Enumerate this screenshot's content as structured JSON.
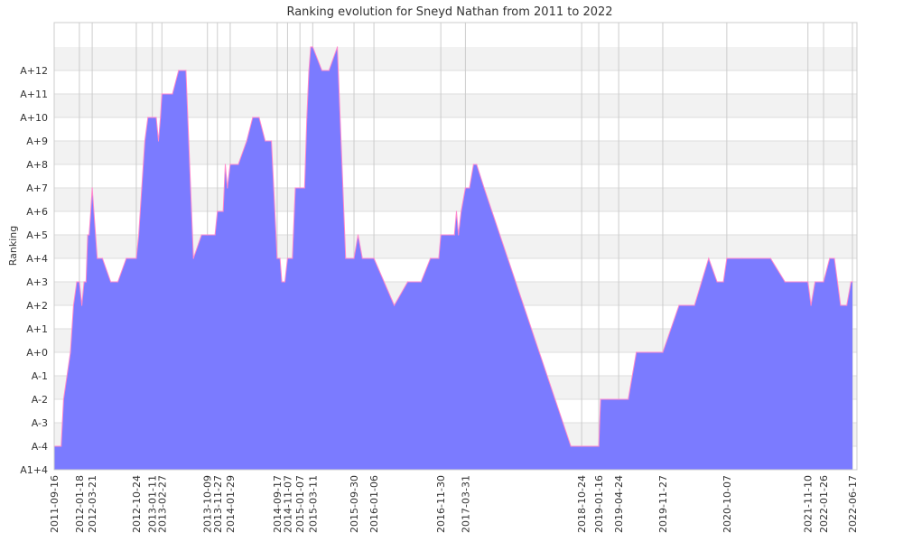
{
  "chart_data": {
    "type": "area",
    "title": "Ranking evolution for Sneyd Nathan from 2011 to 2022",
    "xlabel": "",
    "ylabel": "Ranking",
    "y_ticks": [
      "A1+4",
      "A-4",
      "A-3",
      "A-2",
      "A-1",
      "A+0",
      "A+1",
      "A+2",
      "A+3",
      "A+4",
      "A+5",
      "A+6",
      "A+7",
      "A+8",
      "A+9",
      "A+10",
      "A+11",
      "A+12"
    ],
    "x_ticks": [
      "2011-09-16",
      "2012-01-18",
      "2012-03-21",
      "2012-10-24",
      "2013-01-11",
      "2013-02-27",
      "2013-10-09",
      "2013-11-27",
      "2014-01-29",
      "2014-09-17",
      "2014-11-07",
      "2015-01-07",
      "2015-03-11",
      "2015-09-30",
      "2016-01-06",
      "2016-11-30",
      "2017-03-31",
      "2018-10-24",
      "2019-01-16",
      "2019-04-24",
      "2019-11-27",
      "2020-10-07",
      "2021-11-10",
      "2022-01-26",
      "2022-06-17"
    ],
    "grid": true,
    "colors": {
      "fill": "#7b7bff",
      "line": "#ff88cc",
      "grid": "#cccccc",
      "band": "#f2f2f2"
    },
    "series": [
      {
        "values": [
          [
            "2011-09-16",
            "A-4"
          ],
          [
            "2011-10-20",
            "A-4"
          ],
          [
            "2011-11-01",
            "A-2"
          ],
          [
            "2011-12-05",
            "A+0"
          ],
          [
            "2011-12-20",
            "A+2"
          ],
          [
            "2012-01-05",
            "A+3"
          ],
          [
            "2012-01-18",
            "A+3"
          ],
          [
            "2012-01-30",
            "A+2"
          ],
          [
            "2012-02-10",
            "A+3"
          ],
          [
            "2012-02-20",
            "A+3"
          ],
          [
            "2012-02-28",
            "A+5"
          ],
          [
            "2012-03-06",
            "A+5"
          ],
          [
            "2012-03-14",
            "A+6"
          ],
          [
            "2012-03-21",
            "A+7"
          ],
          [
            "2012-04-15",
            "A+4"
          ],
          [
            "2012-05-10",
            "A+4"
          ],
          [
            "2012-06-20",
            "A+3"
          ],
          [
            "2012-07-25",
            "A+3"
          ],
          [
            "2012-09-05",
            "A+4"
          ],
          [
            "2012-10-24",
            "A+4"
          ],
          [
            "2012-11-05",
            "A+5"
          ],
          [
            "2012-11-20",
            "A+7"
          ],
          [
            "2012-12-05",
            "A+9"
          ],
          [
            "2012-12-20",
            "A+10"
          ],
          [
            "2013-01-11",
            "A+10"
          ],
          [
            "2013-01-30",
            "A+10"
          ],
          [
            "2013-02-10",
            "A+9"
          ],
          [
            "2013-02-20",
            "A+10"
          ],
          [
            "2013-02-27",
            "A+11"
          ],
          [
            "2013-04-20",
            "A+11"
          ],
          [
            "2013-05-20",
            "A+12"
          ],
          [
            "2013-06-25",
            "A+12"
          ],
          [
            "2013-08-01",
            "A+4"
          ],
          [
            "2013-09-10",
            "A+5"
          ],
          [
            "2013-10-09",
            "A+5"
          ],
          [
            "2013-11-15",
            "A+5"
          ],
          [
            "2013-11-27",
            "A+6"
          ],
          [
            "2013-12-10",
            "A+6"
          ],
          [
            "2013-12-25",
            "A+6"
          ],
          [
            "2014-01-05",
            "A+8"
          ],
          [
            "2014-01-15",
            "A+7"
          ],
          [
            "2014-01-29",
            "A+8"
          ],
          [
            "2014-03-10",
            "A+8"
          ],
          [
            "2014-04-20",
            "A+9"
          ],
          [
            "2014-05-20",
            "A+10"
          ],
          [
            "2014-06-20",
            "A+10"
          ],
          [
            "2014-07-20",
            "A+9"
          ],
          [
            "2014-08-20",
            "A+9"
          ],
          [
            "2014-09-17",
            "A+4"
          ],
          [
            "2014-10-01",
            "A+4"
          ],
          [
            "2014-10-10",
            "A+3"
          ],
          [
            "2014-10-20",
            "A+3"
          ],
          [
            "2014-10-25",
            "A+3"
          ],
          [
            "2014-11-07",
            "A+4"
          ],
          [
            "2014-12-01",
            "A+4"
          ],
          [
            "2014-12-15",
            "A+7"
          ],
          [
            "2015-01-07",
            "A+7"
          ],
          [
            "2015-01-30",
            "A+7"
          ],
          [
            "2015-02-10",
            "A+10"
          ],
          [
            "2015-02-20",
            "A+12"
          ],
          [
            "2015-03-01",
            "A+13"
          ],
          [
            "2015-03-11",
            "A+13"
          ],
          [
            "2015-04-25",
            "A+12"
          ],
          [
            "2015-05-30",
            "A+12"
          ],
          [
            "2015-07-10",
            "A+13"
          ],
          [
            "2015-08-20",
            "A+4"
          ],
          [
            "2015-09-30",
            "A+4"
          ],
          [
            "2015-10-20",
            "A+5"
          ],
          [
            "2015-11-10",
            "A+4"
          ],
          [
            "2015-12-05",
            "A+4"
          ],
          [
            "2016-01-06",
            "A+4"
          ],
          [
            "2016-04-15",
            "A+2"
          ],
          [
            "2016-06-20",
            "A+3"
          ],
          [
            "2016-08-25",
            "A+3"
          ],
          [
            "2016-10-10",
            "A+4"
          ],
          [
            "2016-11-20",
            "A+4"
          ],
          [
            "2016-11-30",
            "A+5"
          ],
          [
            "2017-01-10",
            "A+5"
          ],
          [
            "2017-02-05",
            "A+5"
          ],
          [
            "2017-02-15",
            "A+6"
          ],
          [
            "2017-02-25",
            "A+5"
          ],
          [
            "2017-03-10",
            "A+6"
          ],
          [
            "2017-03-31",
            "A+7"
          ],
          [
            "2017-04-20",
            "A+7"
          ],
          [
            "2017-05-10",
            "A+8"
          ],
          [
            "2017-05-25",
            "A+8"
          ],
          [
            "2017-07-01",
            "A+7"
          ],
          [
            "2018-09-01",
            "A-4"
          ],
          [
            "2018-10-24",
            "A-4"
          ],
          [
            "2018-12-10",
            "A-4"
          ],
          [
            "2019-01-16",
            "A-4"
          ],
          [
            "2019-01-25",
            "A-2"
          ],
          [
            "2019-03-01",
            "A-2"
          ],
          [
            "2019-04-24",
            "A-2"
          ],
          [
            "2019-06-10",
            "A-2"
          ],
          [
            "2019-07-20",
            "A+0"
          ],
          [
            "2019-09-15",
            "A+0"
          ],
          [
            "2019-11-27",
            "A+0"
          ],
          [
            "2020-02-15",
            "A+2"
          ],
          [
            "2020-05-01",
            "A+2"
          ],
          [
            "2020-07-10",
            "A+4"
          ],
          [
            "2020-08-20",
            "A+3"
          ],
          [
            "2020-09-20",
            "A+3"
          ],
          [
            "2020-10-07",
            "A+4"
          ],
          [
            "2020-12-20",
            "A+4"
          ],
          [
            "2021-05-10",
            "A+4"
          ],
          [
            "2021-07-20",
            "A+3"
          ],
          [
            "2021-10-10",
            "A+3"
          ],
          [
            "2021-11-10",
            "A+3"
          ],
          [
            "2021-11-25",
            "A+2"
          ],
          [
            "2021-12-15",
            "A+3"
          ],
          [
            "2022-01-26",
            "A+3"
          ],
          [
            "2022-02-25",
            "A+4"
          ],
          [
            "2022-03-20",
            "A+4"
          ],
          [
            "2022-04-20",
            "A+2"
          ],
          [
            "2022-05-20",
            "A+2"
          ],
          [
            "2022-06-10",
            "A+3"
          ],
          [
            "2022-06-17",
            "A+3"
          ]
        ]
      }
    ]
  }
}
